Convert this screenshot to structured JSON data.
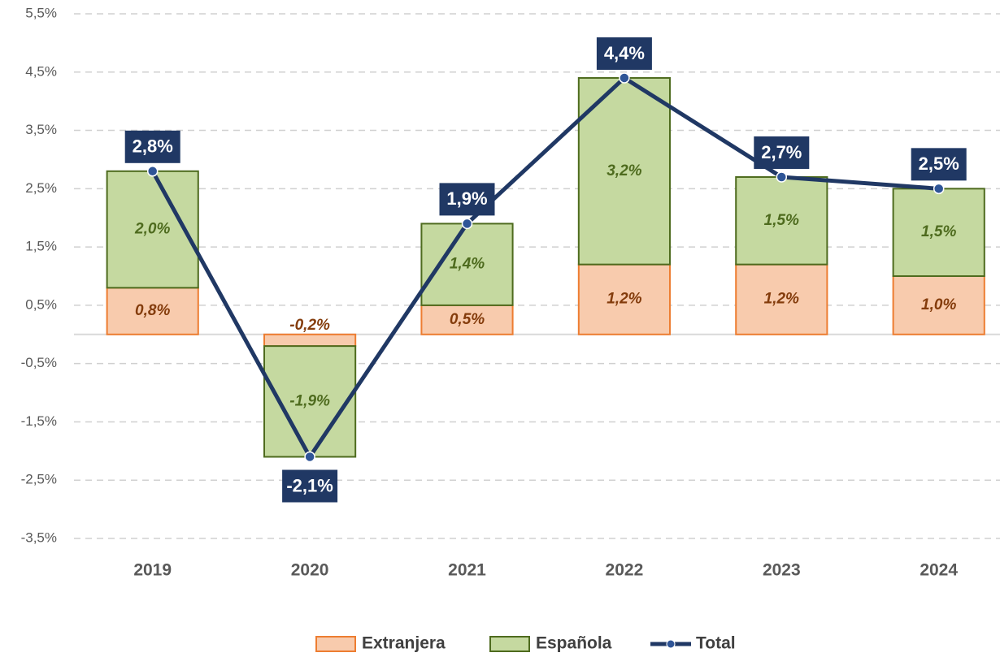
{
  "chart_data": {
    "type": "bar",
    "stacked": true,
    "categories": [
      "2019",
      "2020",
      "2021",
      "2022",
      "2023",
      "2024"
    ],
    "series": [
      {
        "name": "Extranjera",
        "type": "bar",
        "color": "#f8cbad",
        "edge_color": "#ed7d31",
        "label_color": "#843c0c",
        "values": [
          0.8,
          -0.2,
          0.5,
          1.2,
          1.2,
          1.0
        ],
        "value_labels": [
          "0,8%",
          "-0,2%",
          "0,5%",
          "1,2%",
          "1,2%",
          "1,0%"
        ]
      },
      {
        "name": "Española",
        "type": "bar",
        "color": "#c5d9a0",
        "edge_color": "#4e6b1e",
        "label_color": "#4e6b1e",
        "values": [
          2.0,
          -1.9,
          1.4,
          3.2,
          1.5,
          1.5
        ],
        "value_labels": [
          "2,0%",
          "-1,9%",
          "1,4%",
          "3,2%",
          "1,5%",
          "1,5%"
        ]
      },
      {
        "name": "Total",
        "type": "line",
        "color": "#2f5597",
        "label_color": "#203864",
        "values": [
          2.8,
          -2.1,
          1.9,
          4.4,
          2.7,
          2.5
        ],
        "value_labels": [
          "2,8%",
          "-2,1%",
          "1,9%",
          "4,4%",
          "2,7%",
          "2,5%"
        ]
      }
    ],
    "ylim": [
      -3.5,
      5.5
    ],
    "yticks": [
      {
        "value": -3.5,
        "label": "-3,5%"
      },
      {
        "value": -2.5,
        "label": "-2,5%"
      },
      {
        "value": -1.5,
        "label": "-1,5%"
      },
      {
        "value": -0.5,
        "label": "-0,5%"
      },
      {
        "value": 0.5,
        "label": "0,5%"
      },
      {
        "value": 1.5,
        "label": "1,5%"
      },
      {
        "value": 2.5,
        "label": "2,5%"
      },
      {
        "value": 3.5,
        "label": "3,5%"
      },
      {
        "value": 4.5,
        "label": "4,5%"
      },
      {
        "value": 5.5,
        "label": "5,5%"
      }
    ],
    "grid": true,
    "legend": "bottom"
  }
}
